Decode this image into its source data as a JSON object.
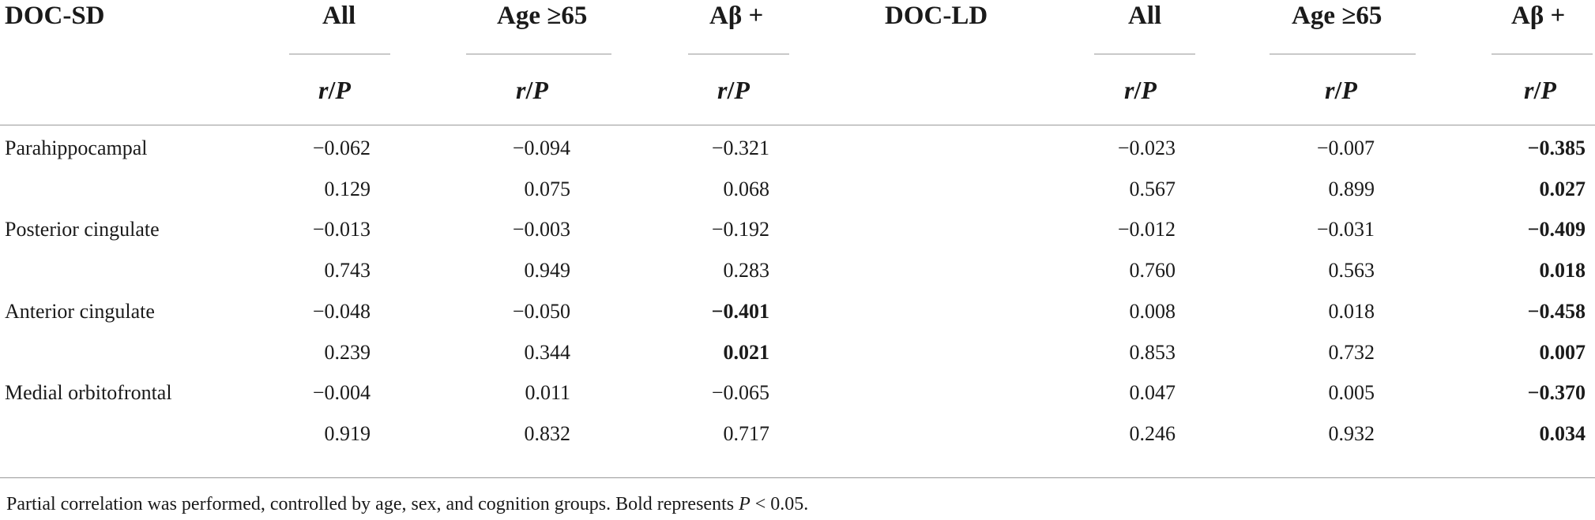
{
  "table": {
    "group_sd": "DOC-SD",
    "group_ld": "DOC-LD",
    "col_all": "All",
    "col_age": "Age ≥65",
    "col_ab": "Aβ +",
    "sub_r": "r",
    "sub_sep": "/",
    "sub_p": "P",
    "rows": [
      {
        "label": "Parahippocampal",
        "r": [
          {
            "v": "−0.062",
            "bold": false
          },
          {
            "v": "−0.094",
            "bold": false
          },
          {
            "v": "−0.321",
            "bold": false
          },
          {
            "v": "−0.023",
            "bold": false
          },
          {
            "v": "−0.007",
            "bold": false
          },
          {
            "v": "−0.385",
            "bold": true
          }
        ],
        "p": [
          {
            "v": "0.129",
            "bold": false
          },
          {
            "v": "0.075",
            "bold": false
          },
          {
            "v": "0.068",
            "bold": false
          },
          {
            "v": "0.567",
            "bold": false
          },
          {
            "v": "0.899",
            "bold": false
          },
          {
            "v": "0.027",
            "bold": true
          }
        ]
      },
      {
        "label": "Posterior cingulate",
        "r": [
          {
            "v": "−0.013",
            "bold": false
          },
          {
            "v": "−0.003",
            "bold": false
          },
          {
            "v": "−0.192",
            "bold": false
          },
          {
            "v": "−0.012",
            "bold": false
          },
          {
            "v": "−0.031",
            "bold": false
          },
          {
            "v": "−0.409",
            "bold": true
          }
        ],
        "p": [
          {
            "v": "0.743",
            "bold": false
          },
          {
            "v": "0.949",
            "bold": false
          },
          {
            "v": "0.283",
            "bold": false
          },
          {
            "v": "0.760",
            "bold": false
          },
          {
            "v": "0.563",
            "bold": false
          },
          {
            "v": "0.018",
            "bold": true
          }
        ]
      },
      {
        "label": "Anterior cingulate",
        "r": [
          {
            "v": "−0.048",
            "bold": false
          },
          {
            "v": "−0.050",
            "bold": false
          },
          {
            "v": "−0.401",
            "bold": true
          },
          {
            "v": "0.008",
            "bold": false
          },
          {
            "v": "0.018",
            "bold": false
          },
          {
            "v": "−0.458",
            "bold": true
          }
        ],
        "p": [
          {
            "v": "0.239",
            "bold": false
          },
          {
            "v": "0.344",
            "bold": false
          },
          {
            "v": "0.021",
            "bold": true
          },
          {
            "v": "0.853",
            "bold": false
          },
          {
            "v": "0.732",
            "bold": false
          },
          {
            "v": "0.007",
            "bold": true
          }
        ]
      },
      {
        "label": "Medial orbitofrontal",
        "r": [
          {
            "v": "−0.004",
            "bold": false
          },
          {
            "v": "0.011",
            "bold": false
          },
          {
            "v": "−0.065",
            "bold": false
          },
          {
            "v": "0.047",
            "bold": false
          },
          {
            "v": "0.005",
            "bold": false
          },
          {
            "v": "−0.370",
            "bold": true
          }
        ],
        "p": [
          {
            "v": "0.919",
            "bold": false
          },
          {
            "v": "0.832",
            "bold": false
          },
          {
            "v": "0.717",
            "bold": false
          },
          {
            "v": "0.246",
            "bold": false
          },
          {
            "v": "0.932",
            "bold": false
          },
          {
            "v": "0.034",
            "bold": true
          }
        ]
      }
    ]
  },
  "footnote": {
    "text_before": "Partial correlation was performed, controlled by age, sex, and cognition groups. Bold represents ",
    "p_symbol": "P",
    "text_after": " < 0.05."
  }
}
